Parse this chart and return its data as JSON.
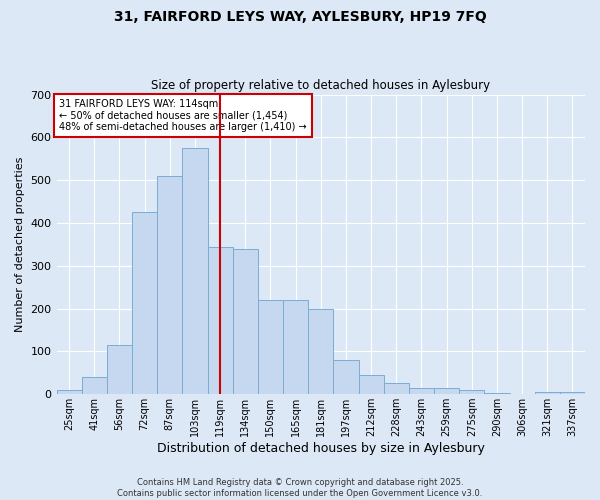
{
  "title_line1": "31, FAIRFORD LEYS WAY, AYLESBURY, HP19 7FQ",
  "title_line2": "Size of property relative to detached houses in Aylesbury",
  "xlabel": "Distribution of detached houses by size in Aylesbury",
  "ylabel": "Number of detached properties",
  "categories": [
    "25sqm",
    "41sqm",
    "56sqm",
    "72sqm",
    "87sqm",
    "103sqm",
    "119sqm",
    "134sqm",
    "150sqm",
    "165sqm",
    "181sqm",
    "197sqm",
    "212sqm",
    "228sqm",
    "243sqm",
    "259sqm",
    "275sqm",
    "290sqm",
    "306sqm",
    "321sqm",
    "337sqm"
  ],
  "values": [
    10,
    40,
    115,
    425,
    510,
    575,
    345,
    340,
    220,
    220,
    200,
    80,
    45,
    25,
    15,
    15,
    10,
    3,
    0,
    5,
    5
  ],
  "bar_color": "#c5d8f0",
  "bar_edge_color": "#7aadd4",
  "vline_color": "#cc0000",
  "annotation_text": "31 FAIRFORD LEYS WAY: 114sqm\n← 50% of detached houses are smaller (1,454)\n48% of semi-detached houses are larger (1,410) →",
  "annotation_box_color": "#ffffff",
  "annotation_edge_color": "#cc0000",
  "background_color": "#dce8f5",
  "grid_color": "#ffffff",
  "footer_text": "Contains HM Land Registry data © Crown copyright and database right 2025.\nContains public sector information licensed under the Open Government Licence v3.0.",
  "ylim": [
    0,
    700
  ],
  "yticks": [
    0,
    100,
    200,
    300,
    400,
    500,
    600,
    700
  ]
}
